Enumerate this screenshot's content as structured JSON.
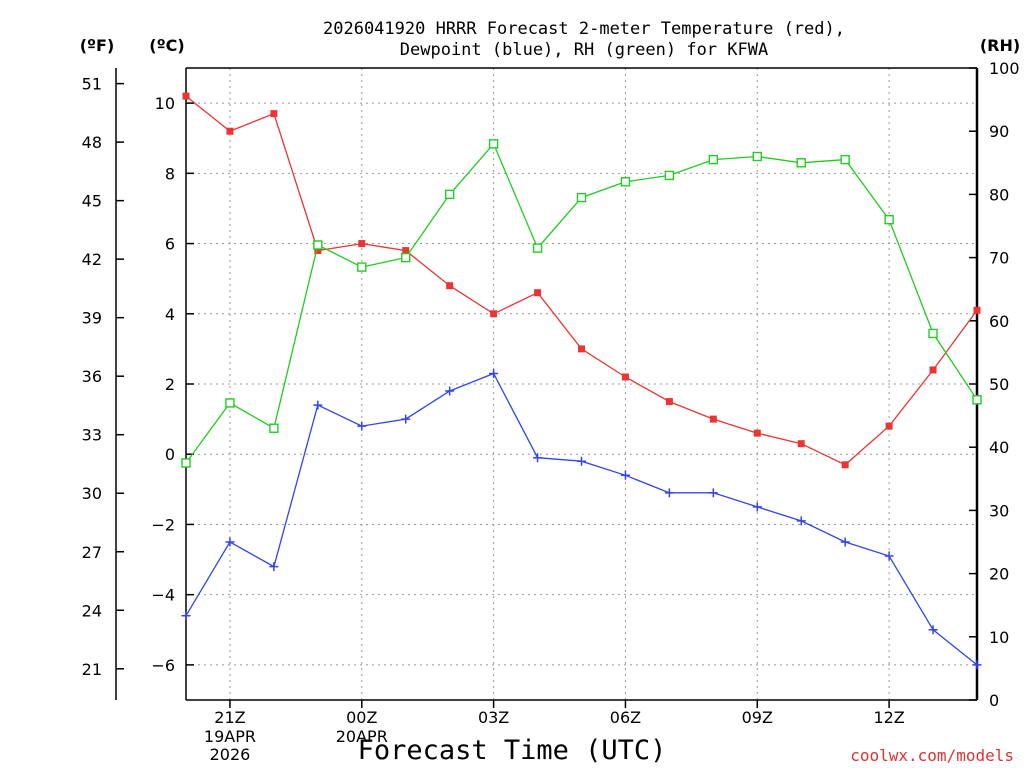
{
  "chart_data": {
    "type": "line",
    "title_line1": "2026041920 HRRR Forecast 2-meter Temperature (red),",
    "title_line2": "Dewpoint (blue), RH (green) for KFWA",
    "xlabel": "Forecast Time (UTC)",
    "credit": "coolwx.com/models",
    "axes": {
      "left_f_unit": "(ºF)",
      "left_c_unit": "(ºC)",
      "right_rh_unit": "(RH)",
      "c_range": [
        -7,
        11
      ],
      "rh_range": [
        0,
        100
      ],
      "f_ticks": [
        "51",
        "48",
        "45",
        "42",
        "39",
        "36",
        "33",
        "30",
        "27",
        "24",
        "21"
      ],
      "f_tick_values": [
        51,
        48,
        45,
        42,
        39,
        36,
        33,
        30,
        27,
        24,
        21
      ],
      "c_ticks": [
        "10",
        "8",
        "6",
        "4",
        "2",
        "0",
        "−2",
        "−4",
        "−6"
      ],
      "c_tick_values": [
        10,
        8,
        6,
        4,
        2,
        0,
        -2,
        -4,
        -6
      ],
      "rh_ticks": [
        "100",
        "90",
        "80",
        "70",
        "60",
        "50",
        "40",
        "30",
        "20",
        "10",
        "0"
      ],
      "rh_tick_values": [
        100,
        90,
        80,
        70,
        60,
        50,
        40,
        30,
        20,
        10,
        0
      ],
      "x_ticks": [
        {
          "hour": 1,
          "l1": "21Z",
          "l2": "19APR",
          "l3": "2026"
        },
        {
          "hour": 4,
          "l1": "00Z",
          "l2": "20APR",
          "l3": ""
        },
        {
          "hour": 7,
          "l1": "03Z",
          "l2": "",
          "l3": ""
        },
        {
          "hour": 10,
          "l1": "06Z",
          "l2": "",
          "l3": ""
        },
        {
          "hour": 13,
          "l1": "09Z",
          "l2": "",
          "l3": ""
        },
        {
          "hour": 16,
          "l1": "12Z",
          "l2": "",
          "l3": ""
        }
      ],
      "x_range": [
        0,
        18
      ],
      "grid": true
    },
    "x_hours": [
      0,
      1,
      2,
      3,
      4,
      5,
      6,
      7,
      8,
      9,
      10,
      11,
      12,
      13,
      14,
      15,
      16,
      17,
      18
    ],
    "series": [
      {
        "name": "Temperature",
        "unit": "C",
        "axis": "c",
        "color": "#ee3333",
        "marker": "filled-square",
        "values": [
          10.2,
          9.2,
          9.7,
          5.8,
          6.0,
          5.8,
          4.8,
          4.0,
          4.6,
          3.0,
          2.2,
          1.5,
          1.0,
          0.6,
          0.3,
          -0.3,
          0.8,
          2.4,
          4.1
        ]
      },
      {
        "name": "Dewpoint",
        "unit": "C",
        "axis": "c",
        "color": "#3344ee",
        "marker": "plus",
        "values": [
          -4.6,
          -2.5,
          -3.2,
          1.4,
          0.8,
          1.0,
          1.8,
          2.3,
          -0.1,
          -0.2,
          -0.6,
          -1.1,
          -1.1,
          -1.5,
          -1.9,
          -2.5,
          -2.9,
          -5.0,
          -6.0
        ]
      },
      {
        "name": "RH",
        "unit": "%",
        "axis": "rh",
        "color": "#22cc22",
        "marker": "open-square",
        "values": [
          37.5,
          47,
          43,
          72,
          68.5,
          70,
          80,
          88,
          71.5,
          79.5,
          82,
          83,
          85.5,
          86,
          85,
          85.5,
          76,
          58,
          47.5
        ]
      }
    ]
  }
}
